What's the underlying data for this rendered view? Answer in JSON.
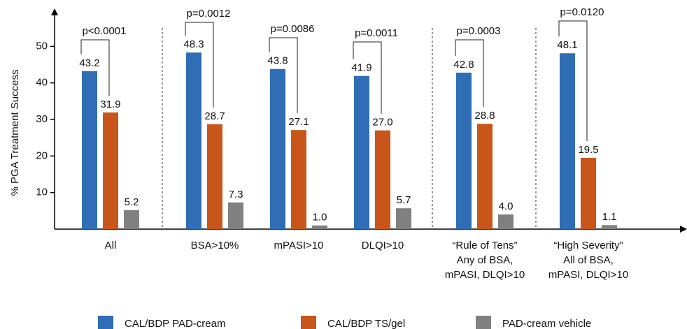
{
  "chart_data": {
    "type": "bar",
    "y_label": "% PGA Treatment Success",
    "categories": [
      [
        "All"
      ],
      [
        "BSA>10%"
      ],
      [
        "mPASI>10"
      ],
      [
        "DLQI>10"
      ],
      [
        "“Rule of Tens”",
        "Any of BSA,",
        "mPASI, DLQI>10"
      ],
      [
        "“High Severity”",
        "All of BSA,",
        "mPASI, DLQI>10"
      ]
    ],
    "series": [
      {
        "name": "CAL/BDP PAD-cream",
        "color": "#2f6db5",
        "values": [
          43.2,
          48.3,
          43.8,
          41.9,
          42.8,
          48.1
        ],
        "value_labels": [
          "43.2",
          "48.3",
          "43.8",
          "41.9",
          "42.8",
          "48.1"
        ]
      },
      {
        "name": "CAL/BDP TS/gel",
        "color": "#c8561a",
        "values": [
          31.9,
          28.7,
          27.1,
          27.0,
          28.8,
          19.5
        ],
        "value_labels": [
          "31.9",
          "28.7",
          "27.1",
          "27.0",
          "28.8",
          "19.5"
        ]
      },
      {
        "name": "PAD-cream vehicle",
        "color": "#808080",
        "values": [
          5.2,
          7.3,
          1.0,
          5.7,
          4.0,
          1.1
        ],
        "value_labels": [
          "5.2",
          "7.3",
          "1.0",
          "5.7",
          "4.0",
          "1.1"
        ]
      }
    ],
    "annotations": [
      "p<0.0001",
      "p=0.0012",
      "p=0.0086",
      "p=0.0011",
      "p=0.0003",
      "p=0.0120"
    ],
    "ylim": [
      0,
      60
    ],
    "yticks": [
      10,
      20,
      30,
      40,
      50
    ],
    "legend": "bottom"
  }
}
